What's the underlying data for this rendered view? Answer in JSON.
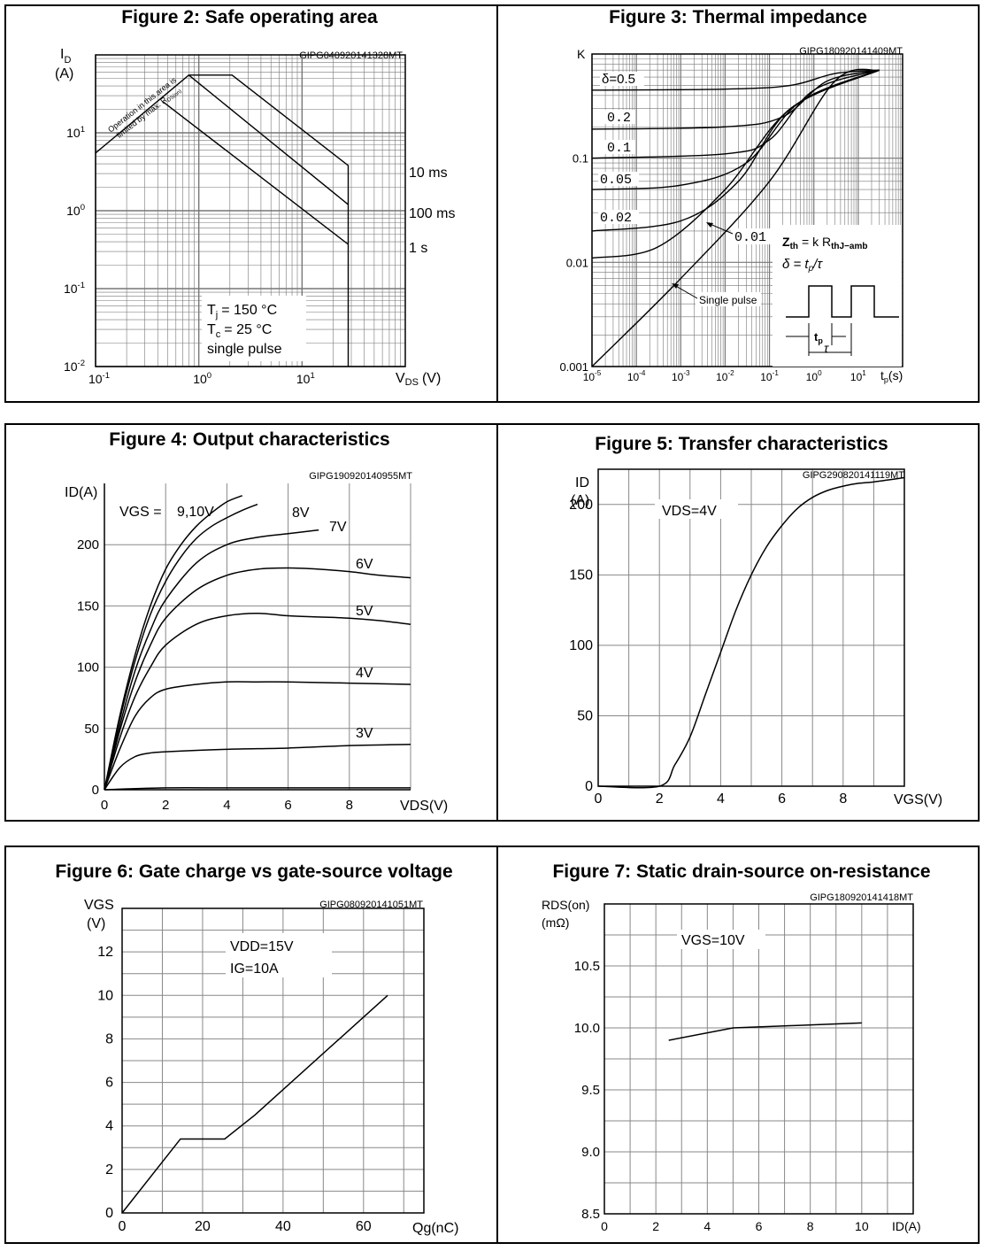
{
  "figures": {
    "fig2": {
      "title": "Figure 2: Safe operating area",
      "code": "GIPG040920141328MT",
      "ylabel_main": "I",
      "ylabel_sub": "D",
      "yunit": "(A)",
      "xlabel_main": "V",
      "xlabel_sub": "DS",
      "xunit": "(V)",
      "diag_line1": "Operation in this area is",
      "diag_line2_main": "limited by max. R",
      "diag_line2_sub": "DS(on)",
      "curve_labels": [
        "10 ms",
        "100 ms",
        "1 s"
      ],
      "cond_tj_main": "T",
      "cond_tj_sub": "j",
      "cond_tj_rest": "= 150 °C",
      "cond_tc_main": "T",
      "cond_tc_sub": "c",
      "cond_tc_rest": "= 25 °C",
      "cond_pulse": "single pulse"
    },
    "fig3": {
      "title": "Figure 3: Thermal impedance",
      "code": "GIPG180920141409MT",
      "ylabel": "K",
      "xlabel_main": "t",
      "xlabel_sub": "p",
      "xunit": "(s)",
      "duty_labels": [
        "δ=0.5",
        "0.2",
        "0.1",
        "0.05",
        "0.02",
        "0.01"
      ],
      "single_pulse": "Single pulse",
      "formula1_main": "Z",
      "formula1_sub": "th",
      "formula1_mid": "= k R",
      "formula1_sub2": "thJ−amb",
      "formula2_a": "δ = t",
      "formula2_sub": "p",
      "formula2_b": "/τ",
      "wave_tp": "t",
      "wave_tp_sub": "p",
      "wave_tau": "τ"
    },
    "fig4": {
      "title": "Figure 4: Output characteristics",
      "code": "GIPG190920140955MT",
      "ylabel": "ID(A)",
      "xlabel": "VDS(V)",
      "vgs_prefix": "VGS =",
      "curve_labels": [
        "9,10V",
        "8V",
        "7V",
        "6V",
        "5V",
        "4V",
        "3V"
      ]
    },
    "fig5": {
      "title": "Figure 5: Transfer characteristics",
      "code": "GIPG290820141119MT",
      "ylabel": "ID",
      "yunit": "(A)",
      "xlabel": "VGS(V)",
      "condition": "VDS=4V"
    },
    "fig6": {
      "title": "Figure 6: Gate charge vs gate-source voltage",
      "code": "GIPG080920141051MT",
      "ylabel": "VGS",
      "yunit": "(V)",
      "xlabel": "Qg(nC)",
      "cond1": "VDD=15V",
      "cond2": "IG=10A"
    },
    "fig7": {
      "title": "Figure 7: Static drain-source on-resistance",
      "code": "GIPG180920141418MT",
      "ylabel": "RDS(on)",
      "yunit": "(mΩ)",
      "xlabel": "ID(A)",
      "condition": "VGS=10V"
    }
  },
  "chart_data": [
    {
      "type": "line",
      "title": "Figure 2: Safe operating area",
      "xscale": "log",
      "yscale": "log",
      "xlim": [
        0.1,
        100
      ],
      "ylim": [
        0.01,
        100
      ],
      "xticklabels": [
        "10^-1",
        "10^0",
        "10^1"
      ],
      "yticklabels": [
        "10^-2",
        "10^-1",
        "10^0",
        "10^1"
      ],
      "series": [
        {
          "name": "10 ms",
          "x": [
            0.1,
            0.8,
            2.1,
            28,
            28
          ],
          "y": [
            5.5,
            55,
            55,
            3.8,
            0.01
          ]
        },
        {
          "name": "100 ms",
          "x": [
            0.8,
            28
          ],
          "y": [
            55,
            1.2
          ]
        },
        {
          "name": "1 s",
          "x": [
            0.45,
            28
          ],
          "y": [
            25,
            0.37
          ]
        }
      ]
    },
    {
      "type": "line",
      "title": "Figure 3: Thermal impedance",
      "xscale": "log",
      "yscale": "log",
      "xlim": [
        1e-05,
        100
      ],
      "ylim": [
        0.001,
        1
      ],
      "xticklabels": [
        "10^-5",
        "10^-4",
        "10^-3",
        "10^-2",
        "10^-1",
        "10^0",
        "10^1"
      ],
      "yticklabels": [
        "0.001",
        "0.01",
        "0.1"
      ],
      "series": [
        {
          "name": "δ=0.5",
          "x": [
            1e-05,
            0.01,
            0.3,
            3,
            30
          ],
          "y": [
            0.45,
            0.46,
            0.5,
            0.65,
            0.7
          ]
        },
        {
          "name": "0.2",
          "x": [
            1e-05,
            0.01,
            0.2,
            2,
            30
          ],
          "y": [
            0.19,
            0.2,
            0.25,
            0.55,
            0.7
          ]
        },
        {
          "name": "0.1",
          "x": [
            1e-05,
            0.01,
            0.1,
            1,
            30
          ],
          "y": [
            0.1,
            0.11,
            0.15,
            0.45,
            0.7
          ]
        },
        {
          "name": "0.05",
          "x": [
            1e-05,
            0.001,
            0.03,
            0.5,
            30
          ],
          "y": [
            0.05,
            0.055,
            0.09,
            0.35,
            0.7
          ]
        },
        {
          "name": "0.02",
          "x": [
            1e-05,
            0.001,
            0.02,
            0.3,
            30
          ],
          "y": [
            0.02,
            0.025,
            0.06,
            0.3,
            0.7
          ]
        },
        {
          "name": "0.01",
          "x": [
            1e-05,
            0.0003,
            0.01,
            0.3,
            30
          ],
          "y": [
            0.011,
            0.014,
            0.05,
            0.3,
            0.7
          ]
        },
        {
          "name": "Single pulse",
          "x": [
            1e-05,
            0.001,
            0.1,
            3,
            30
          ],
          "y": [
            0.001,
            0.007,
            0.06,
            0.55,
            0.7
          ]
        }
      ]
    },
    {
      "type": "line",
      "title": "Figure 4: Output characteristics",
      "xlim": [
        0,
        10
      ],
      "ylim": [
        0,
        250
      ],
      "xticks": [
        0,
        2,
        4,
        6,
        8
      ],
      "yticks": [
        0,
        50,
        100,
        150,
        200
      ],
      "series": [
        {
          "name": "9,10V",
          "x": [
            0,
            0.5,
            1,
            1.5,
            2,
            2.5,
            3,
            3.5,
            4,
            4.5
          ],
          "y": [
            0,
            60,
            110,
            150,
            180,
            200,
            215,
            226,
            235,
            240
          ]
        },
        {
          "name": "8V",
          "x": [
            0,
            0.5,
            1,
            1.5,
            2,
            2.5,
            3,
            3.5,
            4,
            4.5,
            5
          ],
          "y": [
            0,
            57,
            105,
            143,
            170,
            190,
            205,
            215,
            222,
            228,
            233
          ]
        },
        {
          "name": "7V",
          "x": [
            0,
            0.5,
            1,
            1.5,
            2,
            3,
            4,
            5,
            6,
            7
          ],
          "y": [
            0,
            52,
            97,
            130,
            155,
            185,
            200,
            206,
            209,
            212
          ]
        },
        {
          "name": "6V",
          "x": [
            0,
            0.5,
            1,
            1.5,
            2,
            3,
            4,
            5,
            6,
            7,
            8,
            9,
            10
          ],
          "y": [
            0,
            48,
            88,
            118,
            140,
            163,
            175,
            180,
            181,
            180,
            178,
            175,
            173
          ]
        },
        {
          "name": "5V",
          "x": [
            0,
            0.5,
            1,
            1.5,
            2,
            3,
            4,
            5,
            6,
            7,
            8,
            9,
            10
          ],
          "y": [
            0,
            42,
            76,
            100,
            118,
            135,
            142,
            144,
            142,
            141,
            140,
            138,
            135
          ]
        },
        {
          "name": "4V",
          "x": [
            0,
            0.5,
            1,
            1.5,
            2,
            3,
            4,
            5,
            6,
            8,
            10
          ],
          "y": [
            0,
            33,
            60,
            75,
            82,
            86,
            88,
            88,
            88,
            87,
            86
          ]
        },
        {
          "name": "3V",
          "x": [
            0,
            0.5,
            1,
            1.5,
            2,
            4,
            6,
            8,
            10
          ],
          "y": [
            0,
            18,
            27,
            30,
            31,
            33,
            34,
            36,
            37
          ]
        },
        {
          "name": "",
          "x": [
            0,
            2,
            4,
            6,
            8,
            10
          ],
          "y": [
            0,
            1.5,
            1.5,
            1.5,
            1.5,
            1.5
          ]
        }
      ]
    },
    {
      "type": "line",
      "title": "Figure 5: Transfer characteristics",
      "xlim": [
        0,
        10
      ],
      "ylim": [
        0,
        225
      ],
      "xticks": [
        0,
        2,
        4,
        6,
        8
      ],
      "yticks": [
        0,
        50,
        100,
        150,
        200
      ],
      "series": [
        {
          "name": "VDS=4V",
          "x": [
            0,
            2,
            2.5,
            3,
            3.5,
            4,
            4.5,
            5,
            5.5,
            6,
            6.5,
            7,
            7.5,
            8,
            8.5,
            9,
            10
          ],
          "y": [
            0,
            0,
            15,
            35,
            65,
            95,
            125,
            150,
            170,
            185,
            197,
            205,
            210,
            213,
            215,
            216,
            219
          ]
        }
      ]
    },
    {
      "type": "line",
      "title": "Figure 6: Gate charge vs gate-source voltage",
      "xlim": [
        0,
        75
      ],
      "ylim": [
        0,
        14
      ],
      "xticks": [
        0,
        20,
        40,
        60
      ],
      "yticks": [
        0,
        2,
        4,
        6,
        8,
        10,
        12
      ],
      "series": [
        {
          "name": "VDD=15V",
          "x": [
            0,
            14.5,
            25.5,
            33,
            66
          ],
          "y": [
            0,
            3.4,
            3.4,
            4.5,
            10
          ]
        }
      ]
    },
    {
      "type": "line",
      "title": "Figure 7: Static drain-source on-resistance",
      "xlim": [
        0,
        12
      ],
      "ylim": [
        8.5,
        11
      ],
      "xticks": [
        0,
        2,
        4,
        6,
        8,
        10
      ],
      "yticks": [
        8.5,
        9.0,
        9.5,
        10.0,
        10.5
      ],
      "series": [
        {
          "name": "VGS=10V",
          "x": [
            2.5,
            5,
            7.5,
            10
          ],
          "y": [
            9.9,
            10.0,
            10.02,
            10.04
          ]
        }
      ]
    }
  ]
}
